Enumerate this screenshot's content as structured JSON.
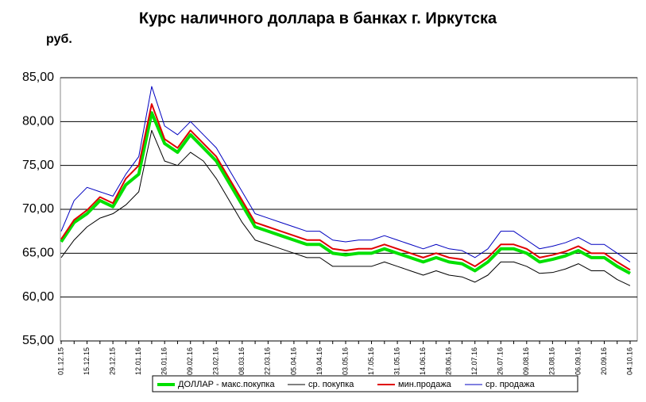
{
  "chart_data": {
    "type": "line",
    "title": "Курс наличного доллара в банках г. Иркутска",
    "y_label": "руб.",
    "categories": [
      "01.12.15",
      null,
      "15.12.15",
      null,
      "29.12.15",
      null,
      "12.01.16",
      null,
      "26.01.16",
      null,
      "09.02.16",
      null,
      "23.02.16",
      null,
      "08.03.16",
      null,
      "22.03.16",
      null,
      "05.04.16",
      null,
      "19.04.16",
      null,
      "03.05.16",
      null,
      "17.05.16",
      null,
      "31.05.16",
      null,
      "14.06.16",
      null,
      "28.06.16",
      null,
      "12.07.16",
      null,
      "26.07.16",
      null,
      "09.08.16",
      null,
      "23.08.16",
      null,
      "06.09.16",
      null,
      "20.09.16",
      null,
      "04.10.16"
    ],
    "series": [
      {
        "name": "ДОЛЛАР - макс.покупка",
        "color": "#00e000",
        "width": 4,
        "values": [
          66.3,
          68.5,
          69.5,
          71,
          70.3,
          72.8,
          74,
          81,
          77.5,
          76.5,
          78.5,
          77,
          75.5,
          73,
          70.5,
          68,
          67.5,
          67,
          66.5,
          66,
          66,
          65,
          64.8,
          65,
          65,
          65.5,
          65,
          64.5,
          64,
          64.5,
          64,
          63.8,
          63,
          64,
          65.5,
          65.5,
          65,
          64,
          64.3,
          64.7,
          65.3,
          64.5,
          64.5,
          63.5,
          62.7
        ]
      },
      {
        "name": "ср. покупка",
        "color": "#000000",
        "width": 1,
        "values": [
          64.5,
          66.5,
          68,
          69,
          69.5,
          70.5,
          72,
          79,
          75.5,
          75,
          76.5,
          75.5,
          73.5,
          71,
          68.5,
          66.5,
          66,
          65.5,
          65,
          64.5,
          64.5,
          63.5,
          63.5,
          63.5,
          63.5,
          64,
          63.5,
          63,
          62.5,
          63,
          62.5,
          62.3,
          61.7,
          62.5,
          64,
          64,
          63.5,
          62.7,
          62.8,
          63.2,
          63.8,
          63,
          63,
          62,
          61.3
        ]
      },
      {
        "name": "мин.продажа",
        "color": "#e00000",
        "width": 2,
        "values": [
          66.6,
          68.8,
          69.9,
          71.4,
          70.7,
          73.5,
          75,
          82,
          78,
          77,
          79,
          77.5,
          76,
          73.5,
          71,
          68.5,
          68,
          67.5,
          67,
          66.5,
          66.5,
          65.5,
          65.3,
          65.5,
          65.5,
          66,
          65.5,
          65,
          64.5,
          65,
          64.5,
          64.3,
          63.5,
          64.5,
          66,
          66,
          65.5,
          64.5,
          64.8,
          65.2,
          65.8,
          65,
          65,
          64,
          63.1
        ]
      },
      {
        "name": "ср. продажа",
        "color": "#0000c0",
        "width": 1,
        "values": [
          67.5,
          71,
          72.5,
          72,
          71.5,
          74,
          76,
          84,
          79.5,
          78.5,
          80,
          78.5,
          77,
          74.5,
          72,
          69.5,
          69,
          68.5,
          68,
          67.5,
          67.5,
          66.5,
          66.3,
          66.5,
          66.5,
          67,
          66.5,
          66,
          65.5,
          66,
          65.5,
          65.3,
          64.5,
          65.5,
          67.5,
          67.5,
          66.5,
          65.5,
          65.8,
          66.2,
          66.8,
          66,
          66,
          65,
          64
        ]
      }
    ],
    "ylim": [
      55,
      85
    ],
    "yticks": [
      {
        "value": 55,
        "label": "55,00"
      },
      {
        "value": 60,
        "label": "60,00"
      },
      {
        "value": 65,
        "label": "65,00"
      },
      {
        "value": 70,
        "label": "70,00"
      },
      {
        "value": 75,
        "label": "75,00"
      },
      {
        "value": 80,
        "label": "80,00"
      },
      {
        "value": 85,
        "label": "85,00"
      }
    ],
    "grid": true
  }
}
